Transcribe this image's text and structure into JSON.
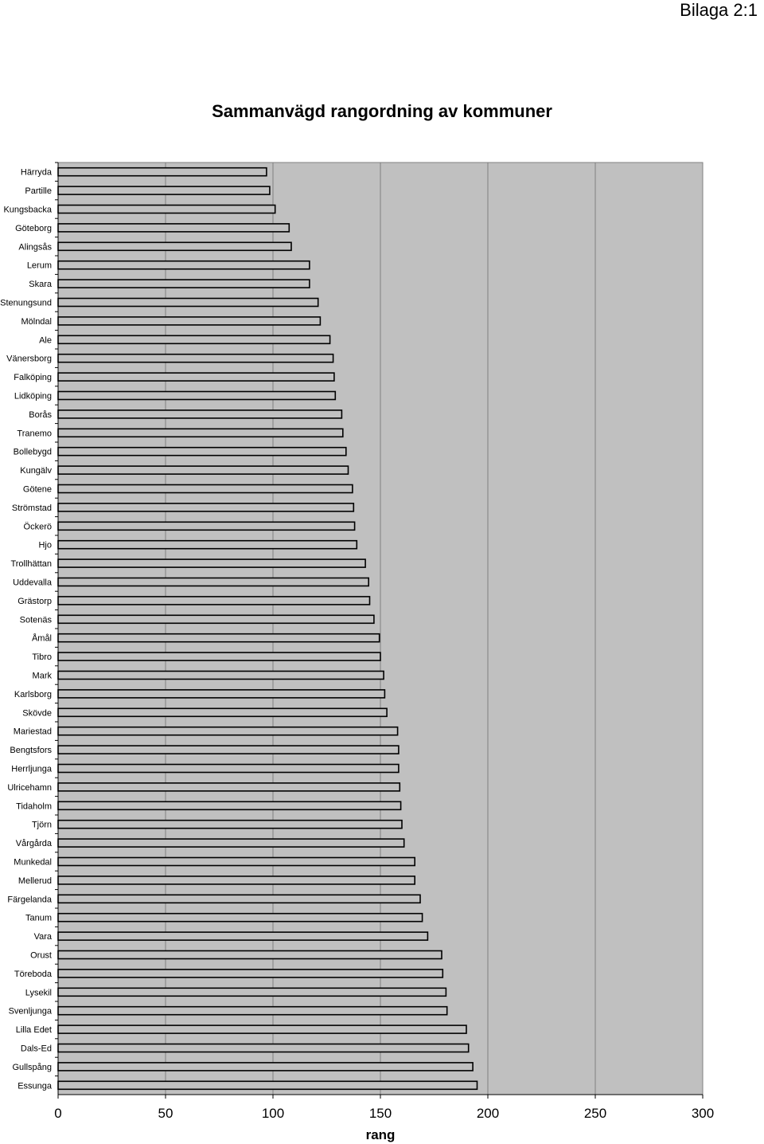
{
  "page": {
    "appendix_label": "Bilaga 2:1"
  },
  "chart_data": {
    "type": "bar",
    "orientation": "horizontal",
    "title": "Sammanvägd rangordning av kommuner",
    "xlabel": "rang",
    "ylabel": "",
    "xlim": [
      0,
      300
    ],
    "xticks": [
      0,
      50,
      100,
      150,
      200,
      250,
      300
    ],
    "grid": "vertical",
    "legend": "none",
    "colors": {
      "plot_background": "#c0c0c0",
      "bar_fill": "#c0c0c0",
      "bar_edge": "#000000",
      "gridline": "#808080"
    },
    "categories": [
      "Härryda",
      "Partille",
      "Kungsbacka",
      "Göteborg",
      "Alingsås",
      "Lerum",
      "Skara",
      "Stenungsund",
      "Mölndal",
      "Ale",
      "Vänersborg",
      "Falköping",
      "Lidköping",
      "Borås",
      "Tranemo",
      "Bollebygd",
      "Kungälv",
      "Götene",
      "Strömstad",
      "Öckerö",
      "Hjo",
      "Trollhättan",
      "Uddevalla",
      "Grästorp",
      "Sotenäs",
      "Åmål",
      "Tibro",
      "Mark",
      "Karlsborg",
      "Skövde",
      "Mariestad",
      "Bengtsfors",
      "Herrljunga",
      "Ulricehamn",
      "Tidaholm",
      "Tjörn",
      "Vårgårda",
      "Munkedal",
      "Mellerud",
      "Färgelanda",
      "Tanum",
      "Vara",
      "Orust",
      "Töreboda",
      "Lysekil",
      "Svenljunga",
      "Lilla Edet",
      "Dals-Ed",
      "Gullspång",
      "Essunga"
    ],
    "values": [
      97,
      98.5,
      101,
      107.5,
      108.5,
      117,
      117,
      121,
      122,
      126.5,
      128,
      128.5,
      129,
      132,
      132.5,
      134,
      135,
      137,
      137.5,
      138,
      139,
      143,
      144.5,
      145,
      147,
      149.5,
      150,
      151.5,
      152,
      153,
      158,
      158.5,
      158.5,
      159,
      159.5,
      160,
      161,
      166,
      166,
      168.5,
      169.5,
      172,
      178.5,
      179,
      180.5,
      181,
      190,
      191,
      193,
      195
    ]
  }
}
